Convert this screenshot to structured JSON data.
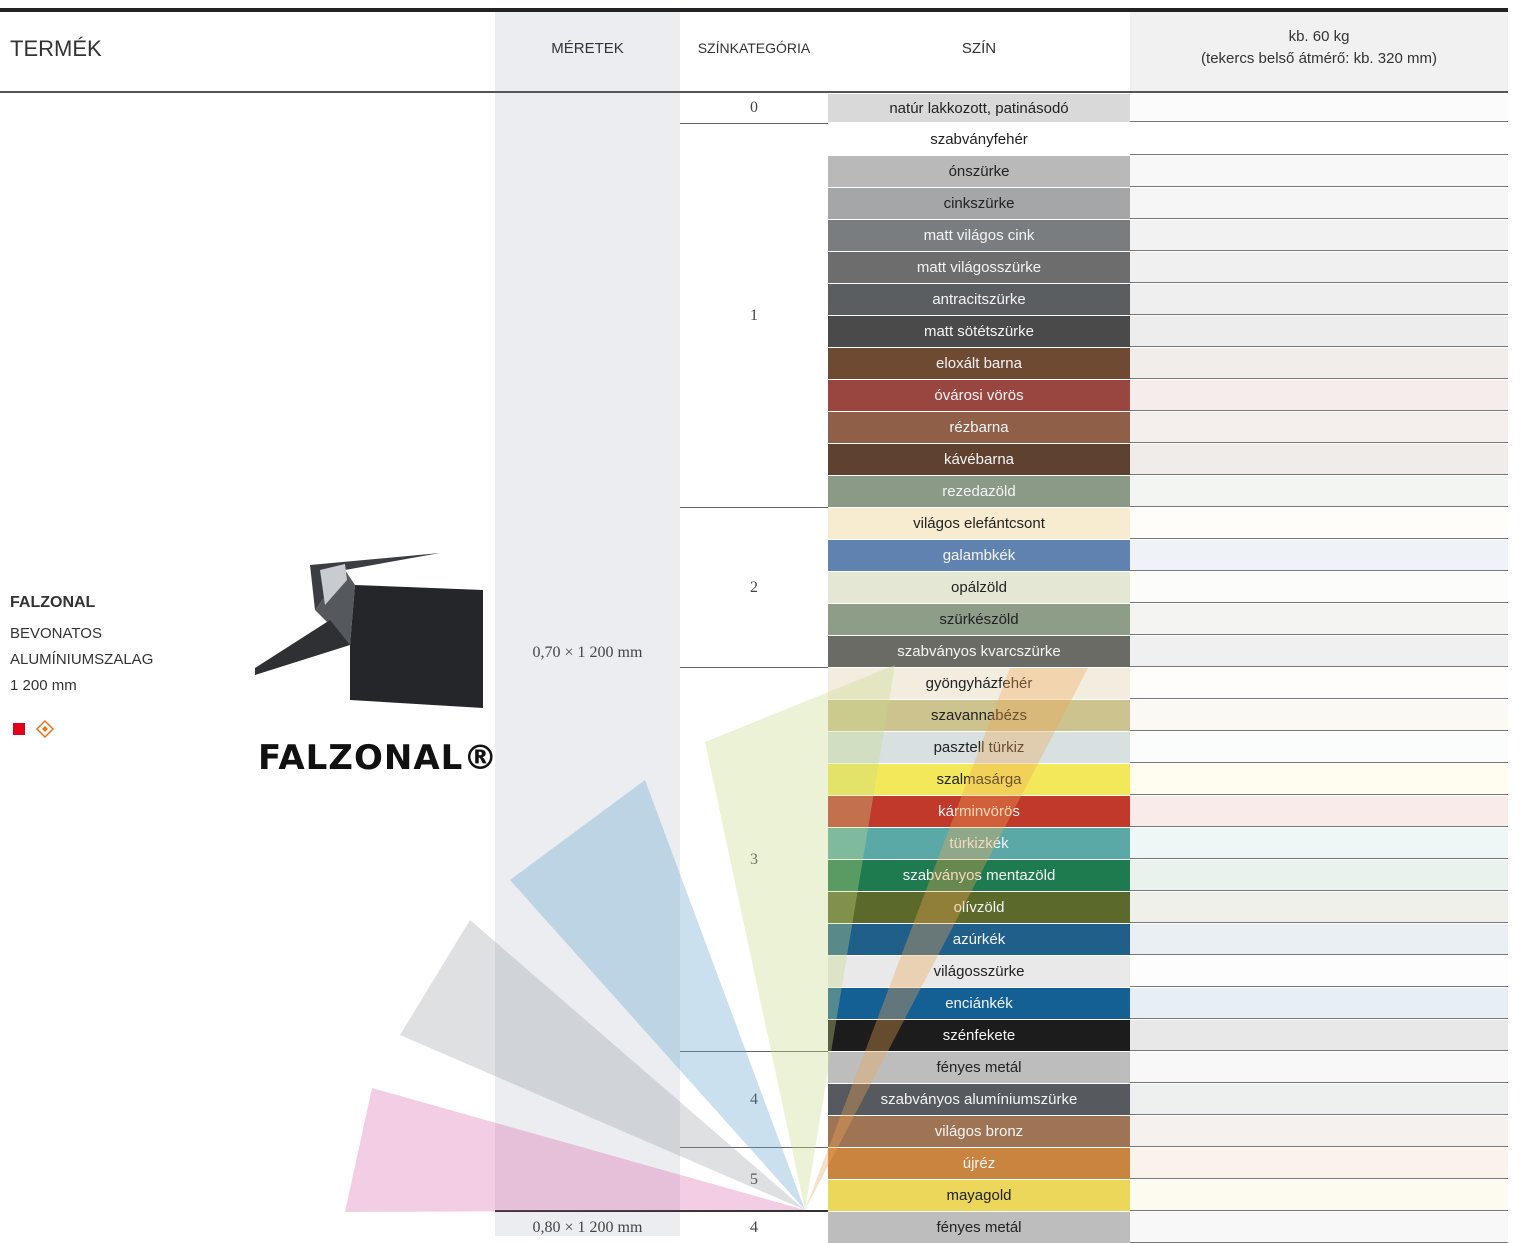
{
  "header": {
    "product": "TERMÉK",
    "sizes": "MÉRETEK",
    "category": "SZÍNKATEGÓRIA",
    "color": "SZÍN",
    "weight": "kb. 60 kg",
    "weight_note": "(tekercs belső átmérő: kb. 320 mm)"
  },
  "product": {
    "name": "FALZONAL",
    "lines": [
      "BEVONATOS",
      "ALUMÍNIUMSZALAG",
      "1 200 mm"
    ],
    "logo": "FALZONAL®"
  },
  "sizes": [
    {
      "label": "0,70 × 1 200 mm",
      "groups": [
        {
          "category": "0",
          "colors": [
            {
              "name": "natúr lakkozott, patinásodó",
              "bg": "#d9d9d9"
            }
          ]
        },
        {
          "category": "1",
          "colors": [
            {
              "name": "szabványfehér",
              "bg": "#ffffff"
            },
            {
              "name": "ónszürke",
              "bg": "#b9b9b9"
            },
            {
              "name": "cinkszürke",
              "bg": "#a5a6a8"
            },
            {
              "name": "matt világos cink",
              "bg": "#7a7d80"
            },
            {
              "name": "matt világosszürke",
              "bg": "#6d6d6d"
            },
            {
              "name": "antracitszürke",
              "bg": "#5b5e61"
            },
            {
              "name": "matt sötétszürke",
              "bg": "#4a4a4a"
            },
            {
              "name": "eloxált barna",
              "bg": "#6e4a33"
            },
            {
              "name": "óvárosi vörös",
              "bg": "#9a4640"
            },
            {
              "name": "rézbarna",
              "bg": "#8f5f47"
            },
            {
              "name": "kávébarna",
              "bg": "#5f4130"
            },
            {
              "name": "rezedazöld",
              "bg": "#8a9a86"
            }
          ]
        },
        {
          "category": "2",
          "colors": [
            {
              "name": "világos elefántcsont",
              "bg": "#f7ecd0"
            },
            {
              "name": "galambkék",
              "bg": "#6082b0"
            },
            {
              "name": "opálzöld",
              "bg": "#e3e7d3"
            },
            {
              "name": "szürkészöld",
              "bg": "#8e9d88"
            },
            {
              "name": "szabványos kvarcszürke",
              "bg": "#6b6b66"
            }
          ]
        },
        {
          "category": "3",
          "colors": [
            {
              "name": "gyöngyházfehér",
              "bg": "#f3eddf"
            },
            {
              "name": "szavannabézs",
              "bg": "#cdc38f"
            },
            {
              "name": "pasztell türkiz",
              "bg": "#d8e1df"
            },
            {
              "name": "szalmasárga",
              "bg": "#f2e85a"
            },
            {
              "name": "kárminvörös",
              "bg": "#c0392b"
            },
            {
              "name": "türkizkék",
              "bg": "#5aa9a6"
            },
            {
              "name": "szabványos mentazöld",
              "bg": "#1e7a4f"
            },
            {
              "name": "olívzöld",
              "bg": "#5b6a2a"
            },
            {
              "name": "azúrkék",
              "bg": "#1f5f8a"
            },
            {
              "name": "világosszürke",
              "bg": "#e9e9e9"
            },
            {
              "name": "enciánkék",
              "bg": "#145f93"
            },
            {
              "name": "szénfekete",
              "bg": "#1c1c1c"
            }
          ]
        },
        {
          "category": "4",
          "colors": [
            {
              "name": "fényes metál",
              "bg": "#bdbdbd"
            },
            {
              "name": "szabványos alumíniumszürke",
              "bg": "#565a5e"
            },
            {
              "name": "világos bronz",
              "bg": "#9e7455"
            }
          ]
        },
        {
          "category": "5",
          "colors": [
            {
              "name": "újréz",
              "bg": "#c98440"
            },
            {
              "name": "mayagold",
              "bg": "#ecd75a"
            }
          ]
        }
      ]
    },
    {
      "label": "0,80 × 1 200 mm",
      "groups": [
        {
          "category": "4",
          "colors": [
            {
              "name": "fényes metál",
              "bg": "#bdbdbd"
            }
          ]
        }
      ]
    }
  ]
}
